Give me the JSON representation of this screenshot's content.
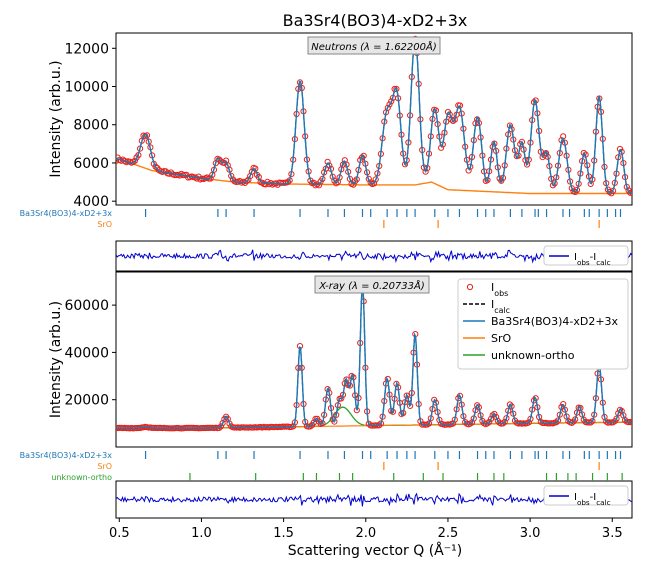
{
  "figure": {
    "title": "Ba3Sr4(BO3)4-xD2+3x",
    "xlabel": "Scattering vector Q (Å⁻¹)",
    "xticks": [
      "0.5",
      "1.0",
      "1.5",
      "2.0",
      "2.5",
      "3.0",
      "3.5"
    ]
  },
  "colors": {
    "obs": "#e8231b",
    "calc": "#000000",
    "phase1": "#1f77b4",
    "phase2": "#ff7f0e",
    "phase3": "#2ca02c",
    "diff": "#0000cc"
  },
  "chart_data": [
    {
      "panel": "neutron",
      "type": "line",
      "annotation": "Neutrons (λ = 1.62200Å)",
      "ylabel": "Intensity (arb.u.)",
      "xlim": [
        0.48,
        3.62
      ],
      "ylim": [
        3800,
        12800
      ],
      "yticks": [
        "4000",
        "6000",
        "8000",
        "10000",
        "12000"
      ],
      "peaks": [
        {
          "x": 0.66,
          "y": 7500,
          "w": 0.03
        },
        {
          "x": 1.1,
          "y": 6200,
          "w": 0.02
        },
        {
          "x": 1.15,
          "y": 6000,
          "w": 0.02
        },
        {
          "x": 1.32,
          "y": 5700,
          "w": 0.02
        },
        {
          "x": 1.6,
          "y": 10300,
          "w": 0.025
        },
        {
          "x": 1.77,
          "y": 6000,
          "w": 0.02
        },
        {
          "x": 1.87,
          "y": 6100,
          "w": 0.02
        },
        {
          "x": 1.98,
          "y": 6400,
          "w": 0.02
        },
        {
          "x": 2.13,
          "y": 8600,
          "w": 0.03
        },
        {
          "x": 2.19,
          "y": 9300,
          "w": 0.025
        },
        {
          "x": 2.3,
          "y": 12500,
          "w": 0.025
        },
        {
          "x": 2.42,
          "y": 8800,
          "w": 0.025
        },
        {
          "x": 2.5,
          "y": 8300,
          "w": 0.025
        },
        {
          "x": 2.57,
          "y": 8900,
          "w": 0.03
        },
        {
          "x": 2.68,
          "y": 8400,
          "w": 0.025
        },
        {
          "x": 2.78,
          "y": 7100,
          "w": 0.02
        },
        {
          "x": 2.88,
          "y": 8000,
          "w": 0.025
        },
        {
          "x": 2.95,
          "y": 7000,
          "w": 0.02
        },
        {
          "x": 3.03,
          "y": 9300,
          "w": 0.025
        },
        {
          "x": 3.1,
          "y": 6500,
          "w": 0.02
        },
        {
          "x": 3.2,
          "y": 7300,
          "w": 0.025
        },
        {
          "x": 3.33,
          "y": 6500,
          "w": 0.02
        },
        {
          "x": 3.42,
          "y": 9500,
          "w": 0.02
        },
        {
          "x": 3.55,
          "y": 6700,
          "w": 0.02
        }
      ],
      "background": {
        "x": [
          0.5,
          0.7,
          1.0,
          1.2,
          1.5,
          2.0,
          2.3,
          2.4,
          2.5,
          3.0,
          3.4,
          3.6
        ],
        "y": [
          6200,
          5600,
          5200,
          5000,
          4900,
          4850,
          4850,
          5000,
          4600,
          4400,
          4400,
          4400
        ]
      },
      "legend": {
        "entries": [
          {
            "label": "Iobs-Icalc",
            "style": "diff"
          }
        ],
        "position": "top-right"
      },
      "tick_rows": [
        {
          "label": "Ba3Sr4(BO3)4-xD2+3x",
          "color": "phase1",
          "positions": [
            0.66,
            1.1,
            1.15,
            1.32,
            1.6,
            1.77,
            1.87,
            1.98,
            2.03,
            2.13,
            2.19,
            2.25,
            2.3,
            2.42,
            2.5,
            2.57,
            2.68,
            2.73,
            2.78,
            2.88,
            2.95,
            3.03,
            3.05,
            3.1,
            3.2,
            3.24,
            3.33,
            3.36,
            3.42,
            3.47,
            3.52,
            3.55
          ]
        },
        {
          "label": "SrO",
          "color": "phase2",
          "positions": [
            2.11,
            2.44,
            3.42
          ]
        }
      ]
    },
    {
      "panel": "xray",
      "type": "line",
      "annotation": "X-ray (λ = 0.20733Å)",
      "ylabel": "Intensity (arb.u.)",
      "xlim": [
        0.48,
        3.62
      ],
      "ylim": [
        0,
        74000
      ],
      "yticks": [
        "20000",
        "40000",
        "60000"
      ],
      "peaks": [
        {
          "x": 0.66,
          "y": 8500,
          "w": 0.02
        },
        {
          "x": 1.15,
          "y": 13000,
          "w": 0.015
        },
        {
          "x": 1.6,
          "y": 43000,
          "w": 0.013
        },
        {
          "x": 1.7,
          "y": 12000,
          "w": 0.015
        },
        {
          "x": 1.77,
          "y": 25000,
          "w": 0.015
        },
        {
          "x": 1.84,
          "y": 20000,
          "w": 0.015
        },
        {
          "x": 1.88,
          "y": 28000,
          "w": 0.015
        },
        {
          "x": 1.92,
          "y": 30000,
          "w": 0.015
        },
        {
          "x": 1.98,
          "y": 70000,
          "w": 0.013
        },
        {
          "x": 2.13,
          "y": 29000,
          "w": 0.015
        },
        {
          "x": 2.19,
          "y": 27000,
          "w": 0.015
        },
        {
          "x": 2.25,
          "y": 22000,
          "w": 0.015
        },
        {
          "x": 2.3,
          "y": 48000,
          "w": 0.013
        },
        {
          "x": 2.42,
          "y": 20000,
          "w": 0.015
        },
        {
          "x": 2.57,
          "y": 22000,
          "w": 0.015
        },
        {
          "x": 2.68,
          "y": 18000,
          "w": 0.015
        },
        {
          "x": 2.78,
          "y": 14000,
          "w": 0.015
        },
        {
          "x": 2.88,
          "y": 18000,
          "w": 0.015
        },
        {
          "x": 3.03,
          "y": 21000,
          "w": 0.015
        },
        {
          "x": 3.2,
          "y": 18000,
          "w": 0.015
        },
        {
          "x": 3.3,
          "y": 17000,
          "w": 0.015
        },
        {
          "x": 3.42,
          "y": 35000,
          "w": 0.015
        },
        {
          "x": 3.55,
          "y": 16000,
          "w": 0.015
        }
      ],
      "background": {
        "x": [
          0.5,
          1.0,
          1.5,
          2.0,
          2.5,
          3.0,
          3.6
        ],
        "y": [
          8000,
          8000,
          8500,
          9000,
          9500,
          10000,
          10500
        ]
      },
      "legend": {
        "entries": [
          {
            "label": "Iobs",
            "style": "obs"
          },
          {
            "label": "Icalc",
            "style": "calc"
          },
          {
            "label": "Ba3Sr4(BO3)4-xD2+3x",
            "style": "phase1"
          },
          {
            "label": "SrO",
            "style": "phase2"
          },
          {
            "label": "unknown-ortho",
            "style": "phase3"
          }
        ],
        "position": "top-right"
      },
      "diff_legend": {
        "label": "Iobs-Icalc",
        "position": "top-right"
      },
      "tick_rows": [
        {
          "label": "Ba3Sr4(BO3)4-xD2+3x",
          "color": "phase1",
          "positions": [
            0.66,
            1.1,
            1.15,
            1.32,
            1.6,
            1.77,
            1.87,
            1.98,
            2.03,
            2.13,
            2.19,
            2.25,
            2.3,
            2.42,
            2.5,
            2.57,
            2.68,
            2.73,
            2.78,
            2.88,
            2.95,
            3.03,
            3.05,
            3.1,
            3.2,
            3.24,
            3.33,
            3.36,
            3.42,
            3.47,
            3.52,
            3.55
          ]
        },
        {
          "label": "SrO",
          "color": "phase2",
          "positions": [
            2.11,
            2.44,
            3.42
          ]
        },
        {
          "label": "unknown-ortho",
          "color": "phase3",
          "positions": [
            0.93,
            1.33,
            1.62,
            1.7,
            1.84,
            1.92,
            2.17,
            2.35,
            2.47,
            2.68,
            2.78,
            2.84,
            3.1,
            3.16,
            3.23,
            3.28,
            3.38,
            3.47,
            3.56
          ]
        }
      ]
    }
  ]
}
